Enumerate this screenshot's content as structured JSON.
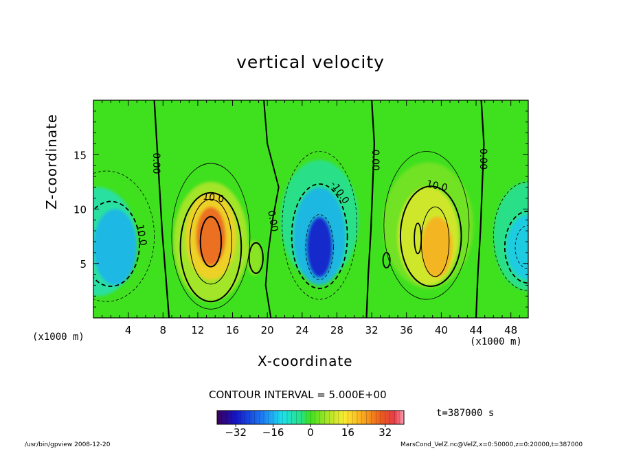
{
  "chart_data": {
    "type": "heatmap",
    "title": "vertical velocity",
    "xlabel": "X-coordinate",
    "ylabel": "Z-coordinate",
    "x_unit_left": "(x1000 m)",
    "x_unit_right": "(x1000 m)",
    "xlim": [
      0,
      50
    ],
    "ylim": [
      0,
      20
    ],
    "x_ticks": [
      4,
      8,
      12,
      16,
      20,
      24,
      28,
      32,
      36,
      40,
      44,
      48
    ],
    "y_ticks": [
      5,
      10,
      15
    ],
    "contour_interval_text": "CONTOUR INTERVAL = 5.000E+00",
    "contour_labels": [
      {
        "text": "0.00",
        "x": 7.2,
        "z": 14.2,
        "angle": 90
      },
      {
        "text": "10.0",
        "x": 13.8,
        "z": 11.0,
        "angle": 8
      },
      {
        "text": "0.00",
        "x": 20.6,
        "z": 8.9,
        "angle": 80
      },
      {
        "text": "10.0",
        "x": 5.5,
        "z": 7.6,
        "angle": 80
      },
      {
        "text": "-10.0",
        "x": 28.3,
        "z": 11.5,
        "angle": 55
      },
      {
        "text": "0.00",
        "x": 32.4,
        "z": 14.5,
        "angle": 90
      },
      {
        "text": "10.0",
        "x": 39.5,
        "z": 12.1,
        "angle": 12
      },
      {
        "text": "0.00",
        "x": 44.8,
        "z": 14.6,
        "angle": 90
      }
    ],
    "colorbar": {
      "min": -40,
      "max": 40,
      "tick_values": [
        -32,
        -16,
        0,
        16,
        32
      ],
      "tick_labels": [
        "−32",
        "−16",
        "0",
        "16",
        "32"
      ]
    },
    "time_label": "t=387000 s",
    "cells": [
      {
        "x": 13.5,
        "z": 7.5,
        "value": 30,
        "sx": 1.7,
        "sz": 2.7
      },
      {
        "x": 13.5,
        "z": 7.5,
        "value": 18,
        "sx": 2.9,
        "sz": 4.0
      },
      {
        "x": 13.5,
        "z": 7.0,
        "value": 8,
        "sx": 4.3,
        "sz": 5.5
      },
      {
        "x": 18.5,
        "z": 5.5,
        "value": 6,
        "sx": 0.9,
        "sz": 1.6
      },
      {
        "x": 26,
        "z": 6.5,
        "value": -32,
        "sx": 1.5,
        "sz": 2.8
      },
      {
        "x": 26,
        "z": 7.5,
        "value": -16,
        "sx": 3.0,
        "sz": 4.5
      },
      {
        "x": 26,
        "z": 9.0,
        "value": -6,
        "sx": 4.5,
        "sz": 5.5
      },
      {
        "x": 39.5,
        "z": 6.5,
        "value": 22,
        "sx": 1.8,
        "sz": 2.8
      },
      {
        "x": 38.5,
        "z": 7.5,
        "value": 12,
        "sx": 3.5,
        "sz": 4.5
      },
      {
        "x": 38.5,
        "z": 8.5,
        "value": 4,
        "sx": 5.2,
        "sz": 5.8
      },
      {
        "x": 2.5,
        "z": 6.5,
        "value": -16,
        "sx": 2.5,
        "sz": 3.5
      },
      {
        "x": 0.5,
        "z": 7.0,
        "value": -8,
        "sx": 4.5,
        "sz": 5.0
      },
      {
        "x": 50,
        "z": 6.5,
        "value": -14,
        "sx": 2.5,
        "sz": 3.0
      },
      {
        "x": 50,
        "z": 7.5,
        "value": -6,
        "sx": 4.0,
        "sz": 5.0
      }
    ]
  },
  "footer": {
    "left": "/usr/bin/gpview   2008-12-20",
    "right": "MarsCond_VelZ.nc@VelZ,x=0:50000,z=0:20000,t=387000"
  }
}
